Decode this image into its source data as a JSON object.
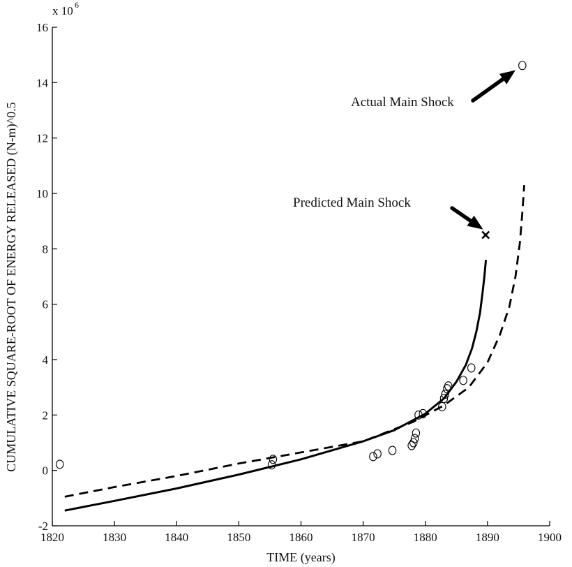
{
  "chart_data": {
    "type": "scatter",
    "title": "",
    "xlabel": "TIME (years)",
    "ylabel": "CUMULATIVE SQUARE-ROOT OF ENERGY RELEASED (N-m)^0.5",
    "y_multiplier_label": "x 10",
    "y_multiplier_exponent": "6",
    "xlim": [
      1820,
      1900
    ],
    "ylim": [
      -2,
      16
    ],
    "x_ticks": [
      1820,
      1830,
      1840,
      1850,
      1860,
      1870,
      1880,
      1890,
      1900
    ],
    "y_ticks": [
      -2,
      0,
      2,
      4,
      6,
      8,
      10,
      12,
      14,
      16
    ],
    "grid": false,
    "series": [
      {
        "style": "circle-markers",
        "x": [
          1821.2,
          1855.3,
          1855.5,
          1871.6,
          1872.3,
          1874.7,
          1877.8,
          1878.1,
          1878.3,
          1878.5,
          1878.9,
          1879.6,
          1882.7,
          1883.0,
          1883.2,
          1883.5,
          1883.7,
          1886.1,
          1887.4,
          1895.6
        ],
        "y": [
          0.22,
          0.2,
          0.4,
          0.5,
          0.6,
          0.72,
          0.9,
          1.0,
          1.15,
          1.35,
          2.0,
          2.05,
          2.3,
          2.6,
          2.75,
          2.95,
          3.05,
          3.25,
          3.7,
          14.62
        ]
      },
      {
        "style": "solid-line",
        "x": [
          1822,
          1830,
          1840,
          1850,
          1860,
          1870,
          1875,
          1880,
          1883,
          1885,
          1886.5,
          1887.5,
          1888.2,
          1888.8,
          1889.2,
          1889.5,
          1889.75
        ],
        "y": [
          -1.45,
          -1.1,
          -0.65,
          -0.15,
          0.4,
          1.05,
          1.45,
          2.05,
          2.6,
          3.2,
          3.8,
          4.4,
          5.0,
          5.7,
          6.4,
          7.0,
          7.6
        ]
      },
      {
        "style": "dashed-line",
        "x": [
          1822,
          1830,
          1840,
          1850,
          1860,
          1870,
          1878,
          1883,
          1887,
          1890,
          1892,
          1893.5,
          1894.5,
          1895.2,
          1895.6,
          1895.9
        ],
        "y": [
          -0.95,
          -0.6,
          -0.2,
          0.25,
          0.65,
          1.05,
          1.75,
          2.35,
          3.0,
          3.9,
          4.9,
          5.9,
          7.0,
          8.2,
          9.3,
          10.3
        ]
      }
    ],
    "predicted_point": {
      "x": 1889.7,
      "y": 8.5
    },
    "annotations": [
      {
        "text": "Actual Main Shock",
        "arrow_to": [
          1894.5,
          14.45
        ]
      },
      {
        "text": "Predicted Main Shock",
        "arrow_to": [
          1889.3,
          8.7
        ]
      }
    ]
  }
}
